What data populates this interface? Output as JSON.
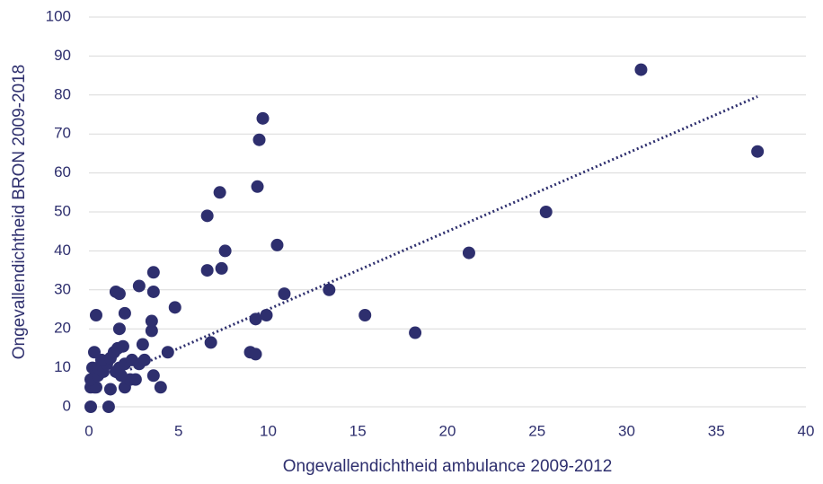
{
  "chart_data": {
    "type": "scatter",
    "xlabel": "Ongevallendichtheid ambulance 2009-2012",
    "ylabel": "Ongevallendichtheid BRON 2009-2018",
    "color": "#2e2f6e",
    "x": [
      0.1,
      1.1,
      0.1,
      0.3,
      0.4,
      0.1,
      0.5,
      0.2,
      0.5,
      0.8,
      1.0,
      0.7,
      1.2,
      1.4,
      1.6,
      1.9,
      0.3,
      1.2,
      2.0,
      2.3,
      2.6,
      1.5,
      1.8,
      1.7,
      2.0,
      2.4,
      2.8,
      3.1,
      3.0,
      3.6,
      3.5,
      3.5,
      3.6,
      3.6,
      4.0,
      4.4,
      4.8,
      2.8,
      1.5,
      1.7,
      2.0,
      1.7,
      0.4,
      6.6,
      6.6,
      6.8,
      7.3,
      7.4,
      7.6,
      9.0,
      9.3,
      9.3,
      9.4,
      9.5,
      9.7,
      9.9,
      10.5,
      10.9,
      13.4,
      15.4,
      18.2,
      21.2,
      25.5,
      30.8,
      37.3
    ],
    "values": [
      0,
      0,
      5,
      5,
      5,
      7,
      8,
      10,
      10,
      9,
      11,
      12,
      12.5,
      14,
      15,
      15.5,
      14,
      4.5,
      5,
      7,
      7,
      9,
      8,
      10,
      11,
      12,
      11,
      12,
      16,
      8,
      19.5,
      22,
      29.5,
      34.5,
      5,
      14,
      25.5,
      31,
      29.5,
      29,
      24,
      20,
      23.5,
      49,
      35,
      16.5,
      55,
      35.5,
      40,
      14,
      13.5,
      22.5,
      56.5,
      68.5,
      74,
      23.5,
      41.5,
      29,
      30,
      23.5,
      19,
      39.5,
      50,
      86.5,
      65.5
    ],
    "trendline": {
      "x": [
        2.3,
        37.3
      ],
      "values": [
        9.6,
        79.6
      ]
    },
    "xlim": [
      0,
      40
    ],
    "xticks": [
      0,
      5,
      10,
      15,
      20,
      25,
      30,
      35,
      40
    ],
    "ylim": [
      0,
      100
    ],
    "yticks": [
      0,
      10,
      20,
      30,
      40,
      50,
      60,
      70,
      80,
      90,
      100
    ],
    "grid": true
  }
}
